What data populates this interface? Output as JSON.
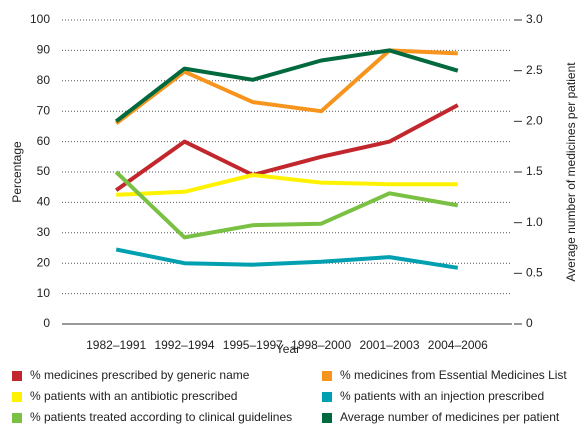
{
  "chart_data": {
    "type": "line",
    "xlabel": "Year",
    "ylabel": "Percentage",
    "y2label": "Average number of medicines per patient",
    "categories": [
      "1982–1991",
      "1992–1994",
      "1995–1997",
      "1998–2000",
      "2001–2003",
      "2004–2006"
    ],
    "ylim": [
      0,
      100
    ],
    "yticks": [
      0,
      10,
      20,
      30,
      40,
      50,
      60,
      70,
      80,
      90,
      100
    ],
    "y2lim": [
      0,
      3
    ],
    "y2ticks": [
      0,
      0.5,
      {
        "value": 1,
        "label": "1.0"
      },
      1.5,
      {
        "value": 2,
        "label": "2.0"
      },
      2.5,
      {
        "value": 3,
        "label": "3.0"
      }
    ],
    "grid": true,
    "series": [
      {
        "name": "% medicines prescribed by generic name",
        "color": "#c1272d",
        "values": [
          44,
          60,
          49,
          55,
          60,
          72
        ]
      },
      {
        "name": "% medicines from Essential Medicines List",
        "color": "#f7941d",
        "values": [
          66,
          83,
          73,
          70,
          90,
          89
        ]
      },
      {
        "name": "% patients with an antibiotic prescribed",
        "color": "#fff200",
        "values": [
          42.5,
          43.5,
          49,
          46.5,
          46,
          46
        ]
      },
      {
        "name": "% patients with an injection prescribed",
        "color": "#00a0b0",
        "values": [
          24.5,
          20,
          19.5,
          20.5,
          22,
          18.5
        ]
      },
      {
        "name": "% patients treated according to clinical guidelines",
        "color": "#7ac143",
        "values": [
          50,
          28.5,
          32.5,
          33,
          43,
          39
        ]
      },
      {
        "name": "Average number of medicines per patient",
        "color": "#00693e",
        "axis": "y2",
        "values": [
          2.0,
          2.52,
          2.41,
          2.6,
          2.7,
          2.5
        ]
      }
    ]
  }
}
